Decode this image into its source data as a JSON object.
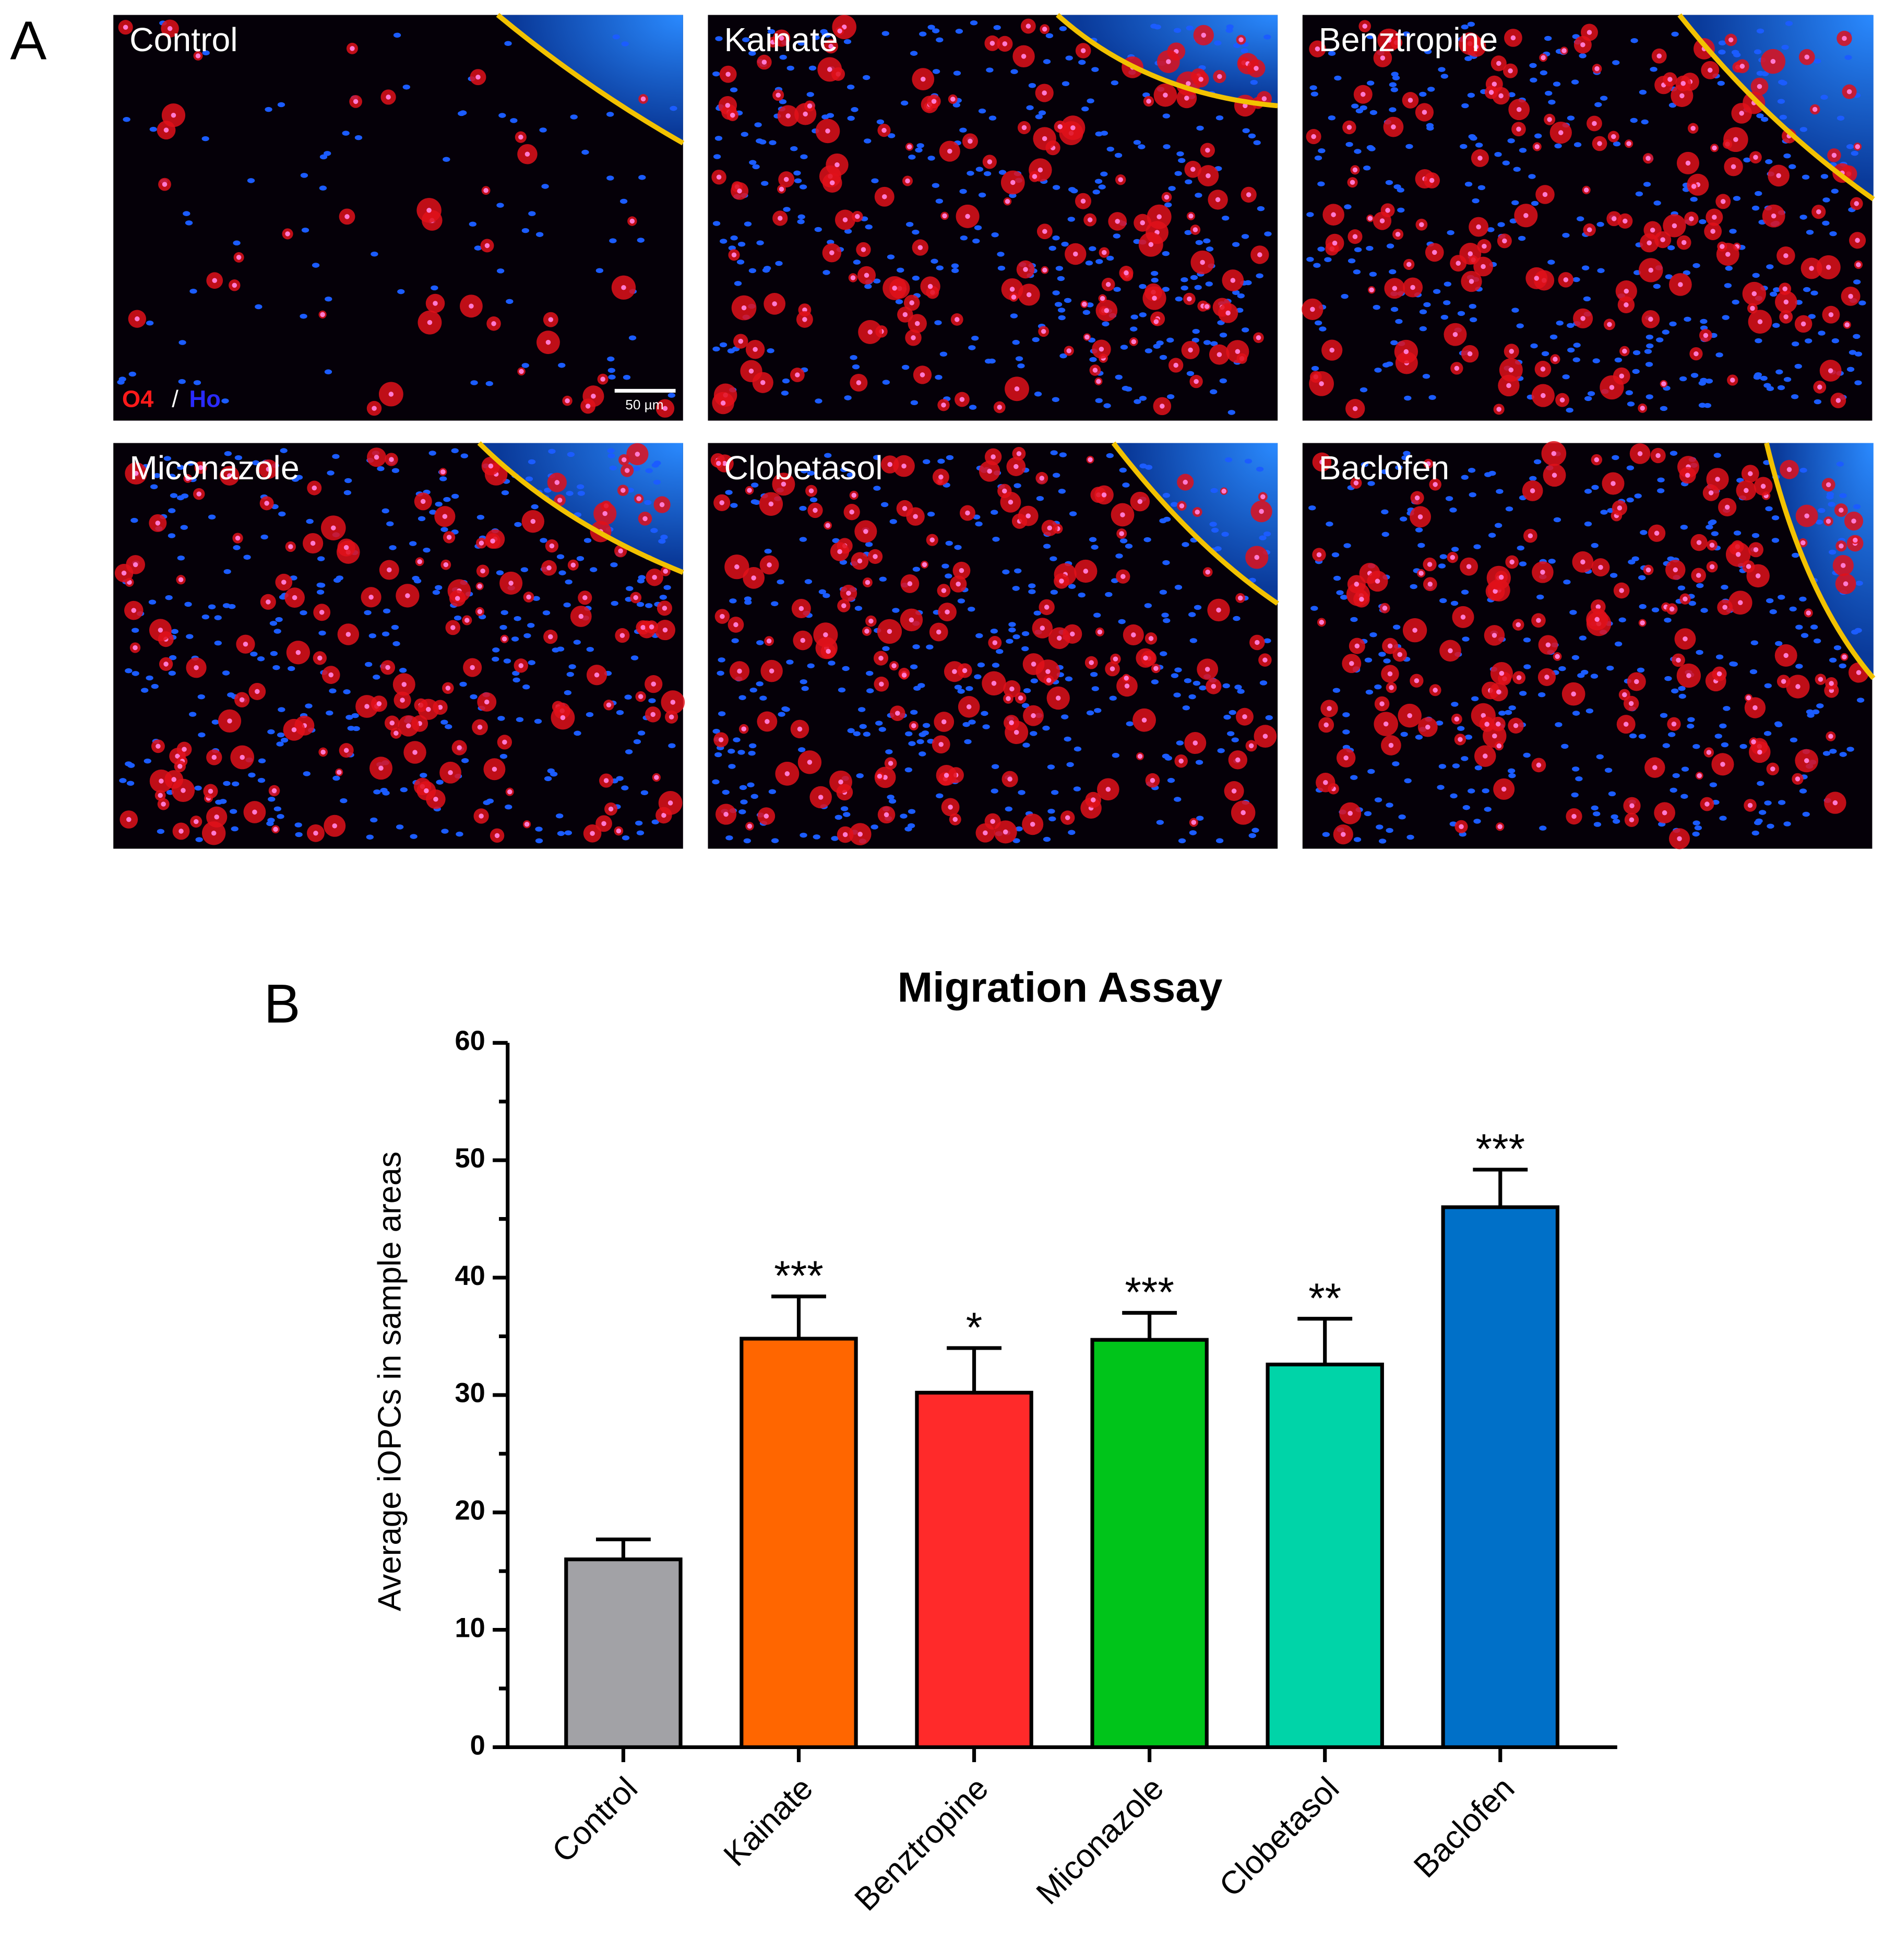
{
  "panel_a": {
    "label": "A",
    "images": [
      "Control",
      "Kainate",
      "Benztropine",
      "Miconazole",
      "Clobetasol",
      "Baclofen"
    ],
    "stain_labels": [
      "O4",
      "/",
      "Ho"
    ],
    "scale_bar": "50 µm"
  },
  "panel_b_label": "B",
  "chart_data": {
    "type": "bar",
    "title": "Migration Assay",
    "y_label": "Average  iOPCs in sample areas",
    "categories": [
      "Control",
      "Kainate",
      "Benztropine",
      "Miconazole",
      "Clobetasol",
      "Baclofen"
    ],
    "values": [
      16,
      34.8,
      30.2,
      34.7,
      32.6,
      46
    ],
    "errors": [
      1.7,
      3.6,
      3.8,
      2.3,
      3.9,
      3.2
    ],
    "annotations": [
      null,
      "***",
      "*",
      "***",
      "**",
      "***"
    ],
    "colors": [
      "#a2a2a6",
      "#ff6600",
      "#ff2a2a",
      "#00c41a",
      "#00d4a8",
      "#0070c8"
    ],
    "ylim": [
      0,
      60
    ],
    "yticks": [
      0,
      10,
      20,
      30,
      40,
      50,
      60
    ],
    "yminorticks": [
      5,
      15,
      25,
      35,
      45,
      55
    ]
  }
}
